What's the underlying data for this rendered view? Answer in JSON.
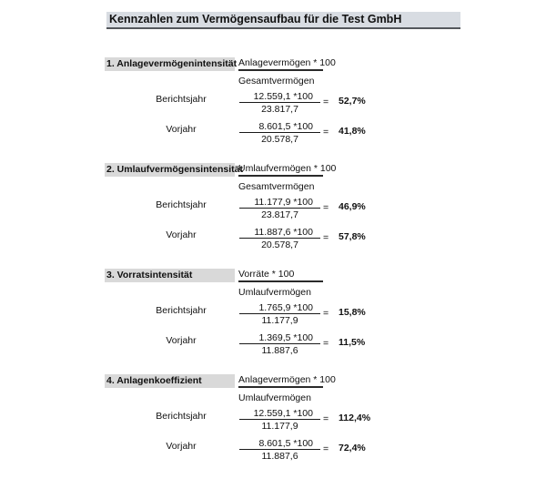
{
  "title": "Kennzahlen zum Vermögensaufbau für die Test GmbH",
  "colors": {
    "title_bar_bg": "#d8dce2",
    "section_header_bg": "#d9d9d9",
    "rule_dark": "#2a2a2a",
    "text": "#111111"
  },
  "sections": [
    {
      "name": "1. Anlagevermögenintensität",
      "formula_numerator": "Anlagevermögen * 100",
      "formula_denominator": "Gesamtvermögen",
      "rows": [
        {
          "label": "Berichtsjahr",
          "numerator": "12.559,1 *100",
          "denominator": "23.817,7",
          "equals": "=",
          "result": "52,7%"
        },
        {
          "label": "Vorjahr",
          "numerator": "8.601,5 *100",
          "denominator": "20.578,7",
          "equals": "=",
          "result": "41,8%"
        }
      ]
    },
    {
      "name": "2. Umlaufvermögensintensität",
      "formula_numerator": "Umlaufvermögen * 100",
      "formula_denominator": "Gesamtvermögen",
      "rows": [
        {
          "label": "Berichtsjahr",
          "numerator": "11.177,9 *100",
          "denominator": "23.817,7",
          "equals": "=",
          "result": "46,9%"
        },
        {
          "label": "Vorjahr",
          "numerator": "11.887,6 *100",
          "denominator": "20.578,7",
          "equals": "=",
          "result": "57,8%"
        }
      ]
    },
    {
      "name": "3. Vorratsintensität",
      "formula_numerator": "Vorräte * 100",
      "formula_denominator": "Umlaufvermögen",
      "rows": [
        {
          "label": "Berichtsjahr",
          "numerator": "1.765,9 *100",
          "denominator": "11.177,9",
          "equals": "=",
          "result": "15,8%"
        },
        {
          "label": "Vorjahr",
          "numerator": "1.369,5 *100",
          "denominator": "11.887,6",
          "equals": "=",
          "result": "11,5%"
        }
      ]
    },
    {
      "name": "4. Anlagenkoeffizient",
      "formula_numerator": "Anlagevermögen * 100",
      "formula_denominator": "Umlaufvermögen",
      "rows": [
        {
          "label": "Berichtsjahr",
          "numerator": "12.559,1 *100",
          "denominator": "11.177,9",
          "equals": "=",
          "result": "112,4%"
        },
        {
          "label": "Vorjahr",
          "numerator": "8.601,5 *100",
          "denominator": "11.887,6",
          "equals": "=",
          "result": "72,4%"
        }
      ]
    }
  ]
}
